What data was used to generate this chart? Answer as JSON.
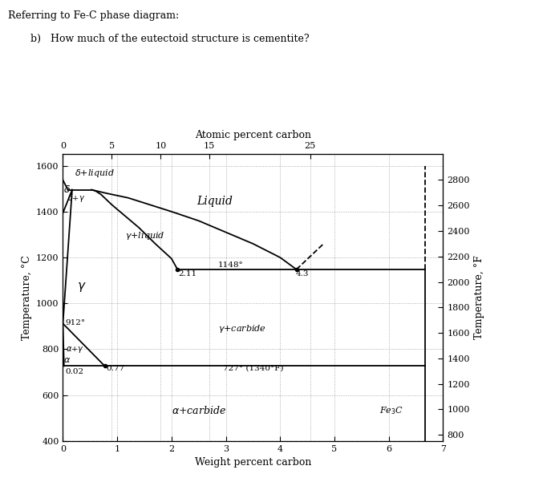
{
  "title_text": "Referring to Fe-C phase diagram:",
  "question_text": "b)   How much of the eutectoid structure is cementite?",
  "atomic_percent_label": "Atomic percent carbon",
  "atomic_percent_ticks": [
    0,
    5,
    10,
    15,
    25
  ],
  "atomic_percent_positions": [
    0.0,
    0.9,
    1.8,
    2.7,
    4.55
  ],
  "weight_percent_label": "Weight percent carbon",
  "weight_percent_ticks": [
    0,
    1,
    2,
    3,
    4,
    5,
    6,
    7
  ],
  "temp_C_label": "Temperature, °C",
  "temp_F_label": "Temperature, °F",
  "temp_C_ticks": [
    400,
    600,
    800,
    1000,
    1200,
    1400,
    1600
  ],
  "xlim": [
    0,
    7
  ],
  "ylim": [
    400,
    1650
  ],
  "background_color": "#ffffff",
  "line_color": "#000000",
  "grid_color": "#999999",
  "F_tick_C": [
    427,
    538,
    649,
    760,
    871,
    982,
    1093,
    1204,
    1316,
    1427,
    1538
  ],
  "F_labels": [
    "800",
    "1000",
    "1200",
    "1400",
    "1600",
    "1800",
    "2000",
    "2200",
    "2400",
    "2600",
    "2800"
  ],
  "peritectic_T": 1495,
  "eutectic_T": 1148,
  "eutectoid_T": 727,
  "A3_T": 912,
  "A4_T": 1394,
  "eutectic_x": 4.3,
  "eutectoid_x": 0.77,
  "gamma_solvus_x": 2.11,
  "Fe3C_x": 6.67,
  "delta_liquid_right_x": 0.09,
  "delta_solidus_x": 0.17,
  "peritectic_right_x": 0.53,
  "alpha_solvus_x": 0.02
}
